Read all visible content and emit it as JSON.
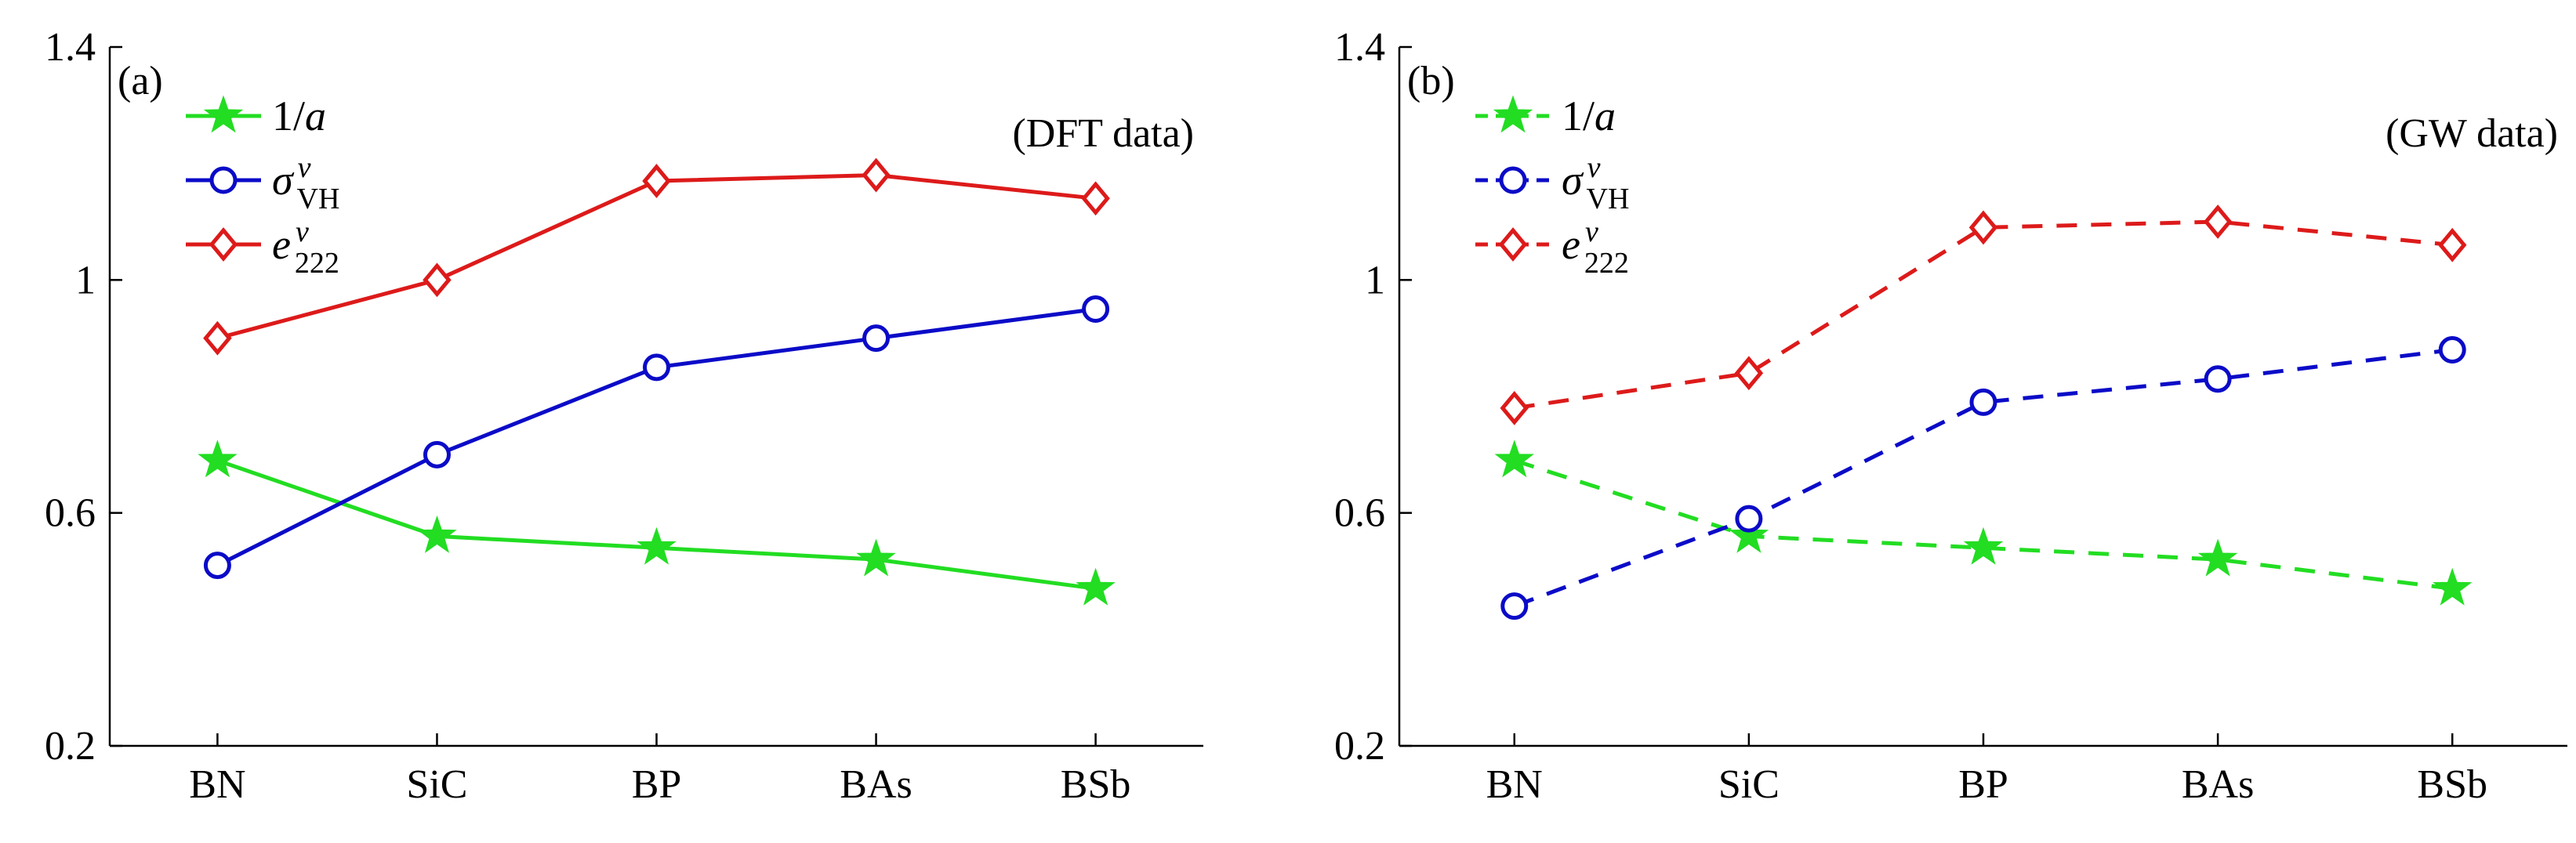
{
  "chart_data": [
    {
      "type": "line",
      "panel_label": "(a)",
      "annotation": "(DFT data)",
      "line_style": "solid",
      "categories": [
        "BN",
        "SiC",
        "BP",
        "BAs",
        "BSb"
      ],
      "ylim": [
        0.2,
        1.4
      ],
      "yticks": [
        "0.2",
        "0.6",
        "1",
        "1.4"
      ],
      "ytick_values": [
        0.2,
        0.6,
        1.0,
        1.4
      ],
      "legend_position": "top-left",
      "series": [
        {
          "name": "1/a",
          "label_main": "1/",
          "label_var": "a",
          "label_sup": "",
          "label_sub": "",
          "color": "#22dd22",
          "marker": "star",
          "values": [
            0.69,
            0.56,
            0.54,
            0.52,
            0.47
          ]
        },
        {
          "name": "σ^v_VH",
          "label_main": "σ",
          "label_var": "",
          "label_sup": "v",
          "label_sub": "VH",
          "color": "#0b0bc8",
          "marker": "circle",
          "values": [
            0.51,
            0.7,
            0.85,
            0.9,
            0.95
          ]
        },
        {
          "name": "e^v_222",
          "label_main": "e",
          "label_var": "",
          "label_sup": "v",
          "label_sub": "222",
          "color": "#dd1a1a",
          "marker": "diamond",
          "values": [
            0.9,
            1.0,
            1.17,
            1.18,
            1.14
          ]
        }
      ]
    },
    {
      "type": "line",
      "panel_label": "(b)",
      "annotation": "(GW data)",
      "line_style": "dashed",
      "categories": [
        "BN",
        "SiC",
        "BP",
        "BAs",
        "BSb"
      ],
      "ylim": [
        0.2,
        1.4
      ],
      "yticks": [
        "0.2",
        "0.6",
        "1",
        "1.4"
      ],
      "ytick_values": [
        0.2,
        0.6,
        1.0,
        1.4
      ],
      "legend_position": "top-left",
      "series": [
        {
          "name": "1/a",
          "label_main": "1/",
          "label_var": "a",
          "label_sup": "",
          "label_sub": "",
          "color": "#22dd22",
          "marker": "star",
          "values": [
            0.69,
            0.56,
            0.54,
            0.52,
            0.47
          ]
        },
        {
          "name": "σ^v_VH",
          "label_main": "σ",
          "label_var": "",
          "label_sup": "v",
          "label_sub": "VH",
          "color": "#0b0bc8",
          "marker": "circle",
          "values": [
            0.44,
            0.59,
            0.79,
            0.83,
            0.88
          ]
        },
        {
          "name": "e^v_222",
          "label_main": "e",
          "label_var": "",
          "label_sup": "v",
          "label_sub": "222",
          "color": "#dd1a1a",
          "marker": "diamond",
          "values": [
            0.78,
            0.84,
            1.09,
            1.1,
            1.06
          ]
        }
      ]
    }
  ]
}
